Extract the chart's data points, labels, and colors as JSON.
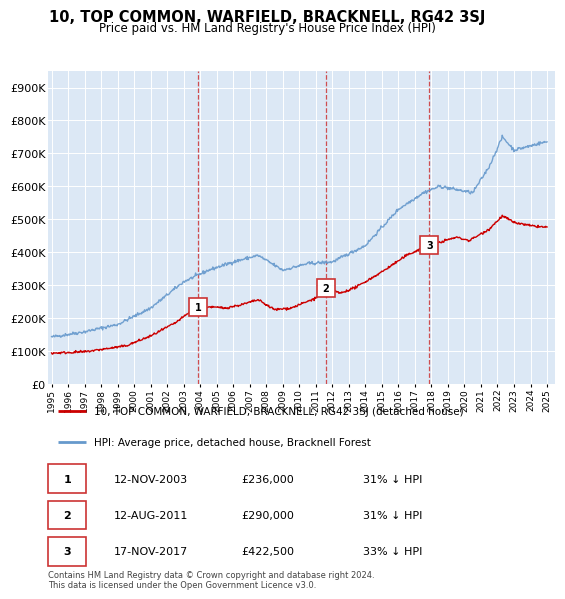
{
  "title": "10, TOP COMMON, WARFIELD, BRACKNELL, RG42 3SJ",
  "subtitle": "Price paid vs. HM Land Registry's House Price Index (HPI)",
  "ylim": [
    0,
    950000
  ],
  "yticks": [
    0,
    100000,
    200000,
    300000,
    400000,
    500000,
    600000,
    700000,
    800000,
    900000
  ],
  "ytick_labels": [
    "£0",
    "£100K",
    "£200K",
    "£300K",
    "£400K",
    "£500K",
    "£600K",
    "£700K",
    "£800K",
    "£900K"
  ],
  "xlim_start": 1994.8,
  "xlim_end": 2025.5,
  "background_color": "#ffffff",
  "plot_bg_color": "#dce8f5",
  "grid_color": "#ffffff",
  "hpi_color": "#6699cc",
  "price_color": "#cc0000",
  "vline_color": "#cc3333",
  "sale_markers": [
    {
      "year": 2003.87,
      "price": 236000,
      "label": "1"
    },
    {
      "year": 2011.62,
      "price": 290000,
      "label": "2"
    },
    {
      "year": 2017.88,
      "price": 422500,
      "label": "3"
    }
  ],
  "legend_entries": [
    "10, TOP COMMON, WARFIELD, BRACKNELL, RG42 3SJ (detached house)",
    "HPI: Average price, detached house, Bracknell Forest"
  ],
  "table_rows": [
    {
      "num": "1",
      "date": "12-NOV-2003",
      "price": "£236,000",
      "pct": "31% ↓ HPI"
    },
    {
      "num": "2",
      "date": "12-AUG-2011",
      "price": "£290,000",
      "pct": "31% ↓ HPI"
    },
    {
      "num": "3",
      "date": "17-NOV-2017",
      "price": "£422,500",
      "pct": "33% ↓ HPI"
    }
  ],
  "footer": "Contains HM Land Registry data © Crown copyright and database right 2024.\nThis data is licensed under the Open Government Licence v3.0."
}
